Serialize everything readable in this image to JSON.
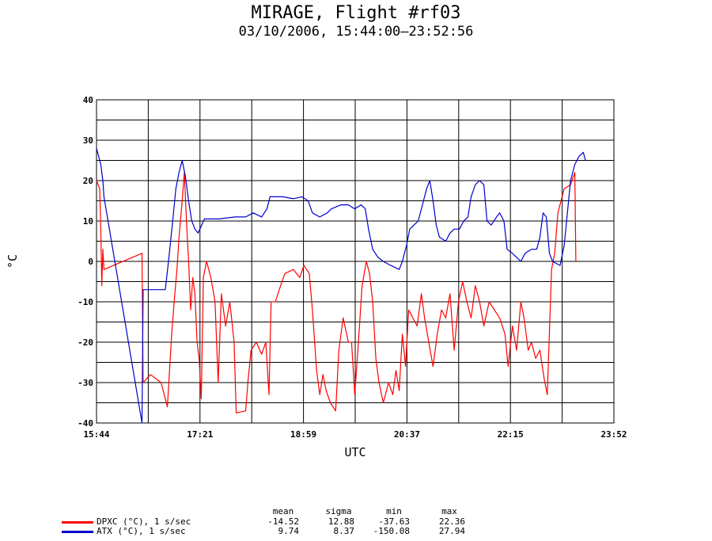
{
  "title": "MIRAGE, Flight #rf03",
  "subtitle": "03/10/2006, 15:44:00–23:52:56",
  "chart_data": {
    "type": "line",
    "xlabel": "UTC",
    "ylabel": "°C",
    "x_ticks": [
      "15:44",
      "17:21",
      "18:59",
      "20:37",
      "22:15",
      "23:52"
    ],
    "xlim": [
      "15:44:00",
      "23:52:56"
    ],
    "ylim": [
      -40,
      40
    ],
    "y_ticks": [
      -40,
      -30,
      -20,
      -10,
      0,
      10,
      20,
      30,
      40
    ],
    "grid": true,
    "series": [
      {
        "name": "DPXC (°C), 1 s/sec",
        "color": "#ff0000",
        "points": [
          [
            "15:44",
            20
          ],
          [
            "15:47",
            18
          ],
          [
            "15:48",
            8
          ],
          [
            "15:49",
            -6
          ],
          [
            "15:50",
            3
          ],
          [
            "15:51",
            -2
          ],
          [
            "16:27",
            2
          ],
          [
            "16:28",
            -30
          ],
          [
            "16:35",
            -28
          ],
          [
            "16:45",
            -30
          ],
          [
            "16:51",
            -36
          ],
          [
            "16:55",
            -18
          ],
          [
            "16:58",
            -8
          ],
          [
            "17:00",
            -2
          ],
          [
            "17:02",
            6
          ],
          [
            "17:05",
            15
          ],
          [
            "17:07",
            22
          ],
          [
            "17:09",
            10
          ],
          [
            "17:11",
            0
          ],
          [
            "17:13",
            -12
          ],
          [
            "17:15",
            -4
          ],
          [
            "17:17",
            -8
          ],
          [
            "17:19",
            -20
          ],
          [
            "17:21",
            -24
          ],
          [
            "17:23",
            -34
          ],
          [
            "17:25",
            -4
          ],
          [
            "17:28",
            0
          ],
          [
            "17:32",
            -4
          ],
          [
            "17:36",
            -10
          ],
          [
            "17:39",
            -30
          ],
          [
            "17:42",
            -8
          ],
          [
            "17:46",
            -16
          ],
          [
            "17:50",
            -10
          ],
          [
            "17:54",
            -20
          ],
          [
            "17:56",
            -37.5
          ],
          [
            "18:05",
            -37
          ],
          [
            "18:07",
            -30
          ],
          [
            "18:10",
            -22
          ],
          [
            "18:15",
            -20
          ],
          [
            "18:20",
            -23
          ],
          [
            "18:24",
            -20
          ],
          [
            "18:27",
            -33
          ],
          [
            "18:29",
            -10
          ],
          [
            "18:33",
            -10
          ],
          [
            "18:38",
            -6
          ],
          [
            "18:42",
            -3
          ],
          [
            "18:50",
            -2
          ],
          [
            "18:56",
            -4
          ],
          [
            "19:00",
            -1
          ],
          [
            "19:05",
            -3
          ],
          [
            "19:08",
            -12
          ],
          [
            "19:12",
            -27
          ],
          [
            "19:15",
            -33
          ],
          [
            "19:18",
            -28
          ],
          [
            "19:21",
            -32
          ],
          [
            "19:25",
            -35
          ],
          [
            "19:30",
            -37
          ],
          [
            "19:33",
            -22
          ],
          [
            "19:37",
            -14
          ],
          [
            "19:42",
            -20
          ],
          [
            "19:45",
            -20
          ],
          [
            "19:48",
            -33
          ],
          [
            "19:51",
            -22
          ],
          [
            "19:55",
            -6
          ],
          [
            "19:59",
            0
          ],
          [
            "20:02",
            -3
          ],
          [
            "20:05",
            -10
          ],
          [
            "20:08",
            -24
          ],
          [
            "20:11",
            -30
          ],
          [
            "20:15",
            -35
          ],
          [
            "20:20",
            -30
          ],
          [
            "20:24",
            -33
          ],
          [
            "20:27",
            -27
          ],
          [
            "20:30",
            -32
          ],
          [
            "20:33",
            -18
          ],
          [
            "20:36",
            -26
          ],
          [
            "20:39",
            -12
          ],
          [
            "20:43",
            -14
          ],
          [
            "20:47",
            -16
          ],
          [
            "20:51",
            -8
          ],
          [
            "20:54",
            -14
          ],
          [
            "20:58",
            -20
          ],
          [
            "21:02",
            -26
          ],
          [
            "21:06",
            -18
          ],
          [
            "21:10",
            -12
          ],
          [
            "21:14",
            -14
          ],
          [
            "21:18",
            -8
          ],
          [
            "21:22",
            -22
          ],
          [
            "21:26",
            -10
          ],
          [
            "21:30",
            -5
          ],
          [
            "21:34",
            -10
          ],
          [
            "21:38",
            -14
          ],
          [
            "21:42",
            -6
          ],
          [
            "21:46",
            -10
          ],
          [
            "21:50",
            -16
          ],
          [
            "21:55",
            -10
          ],
          [
            "22:00",
            -12
          ],
          [
            "22:05",
            -14
          ],
          [
            "22:10",
            -18
          ],
          [
            "22:13",
            -26
          ],
          [
            "22:17",
            -16
          ],
          [
            "22:21",
            -22
          ],
          [
            "22:25",
            -10
          ],
          [
            "22:28",
            -14
          ],
          [
            "22:32",
            -22
          ],
          [
            "22:35",
            -20
          ],
          [
            "22:39",
            -24
          ],
          [
            "22:43",
            -22
          ],
          [
            "22:47",
            -29
          ],
          [
            "22:50",
            -33
          ],
          [
            "22:54",
            -2
          ],
          [
            "22:57",
            2
          ],
          [
            "23:00",
            12
          ],
          [
            "23:06",
            18
          ],
          [
            "23:12",
            19
          ],
          [
            "23:16",
            22
          ],
          [
            "23:17",
            0
          ]
        ]
      },
      {
        "name": "ATX (°C), 1 s/sec",
        "color": "#0000cc",
        "points": [
          [
            "15:44",
            28
          ],
          [
            "15:46",
            26
          ],
          [
            "15:48",
            24
          ],
          [
            "15:50",
            20
          ],
          [
            "15:51",
            16
          ],
          [
            "16:27",
            -42
          ],
          [
            "16:28",
            -7
          ],
          [
            "16:40",
            -7
          ],
          [
            "16:49",
            -7
          ],
          [
            "16:52",
            0
          ],
          [
            "16:56",
            10
          ],
          [
            "16:59",
            18
          ],
          [
            "17:02",
            22
          ],
          [
            "17:05",
            25
          ],
          [
            "17:08",
            21
          ],
          [
            "17:11",
            15
          ],
          [
            "17:14",
            10
          ],
          [
            "17:17",
            8
          ],
          [
            "17:20",
            7
          ],
          [
            "17:26",
            10.5
          ],
          [
            "17:40",
            10.5
          ],
          [
            "17:55",
            11
          ],
          [
            "18:05",
            11
          ],
          [
            "18:12",
            12
          ],
          [
            "18:20",
            11
          ],
          [
            "18:25",
            13
          ],
          [
            "18:28",
            16
          ],
          [
            "18:40",
            16
          ],
          [
            "18:50",
            15.5
          ],
          [
            "18:58",
            16
          ],
          [
            "19:04",
            15
          ],
          [
            "19:08",
            12
          ],
          [
            "19:15",
            11
          ],
          [
            "19:22",
            12
          ],
          [
            "19:26",
            13
          ],
          [
            "19:35",
            14
          ],
          [
            "19:42",
            14
          ],
          [
            "19:48",
            13
          ],
          [
            "19:54",
            14
          ],
          [
            "19:58",
            13
          ],
          [
            "20:01",
            8
          ],
          [
            "20:05",
            3
          ],
          [
            "20:10",
            1
          ],
          [
            "20:15",
            0
          ],
          [
            "20:22",
            -1
          ],
          [
            "20:30",
            -2
          ],
          [
            "20:33",
            0
          ],
          [
            "20:37",
            4
          ],
          [
            "20:40",
            8
          ],
          [
            "20:44",
            9
          ],
          [
            "20:48",
            10
          ],
          [
            "20:52",
            14
          ],
          [
            "20:56",
            18
          ],
          [
            "20:59",
            20
          ],
          [
            "21:02",
            15
          ],
          [
            "21:05",
            9
          ],
          [
            "21:08",
            6
          ],
          [
            "21:14",
            5
          ],
          [
            "21:18",
            7
          ],
          [
            "21:22",
            8
          ],
          [
            "21:27",
            8
          ],
          [
            "21:31",
            10
          ],
          [
            "21:35",
            11
          ],
          [
            "21:38",
            16
          ],
          [
            "21:42",
            19
          ],
          [
            "21:46",
            20
          ],
          [
            "21:50",
            19
          ],
          [
            "21:53",
            10
          ],
          [
            "21:57",
            9
          ],
          [
            "22:02",
            11
          ],
          [
            "22:05",
            12
          ],
          [
            "22:09",
            10
          ],
          [
            "22:12",
            3
          ],
          [
            "22:17",
            2
          ],
          [
            "22:21",
            1
          ],
          [
            "22:25",
            0
          ],
          [
            "22:29",
            2
          ],
          [
            "22:35",
            3
          ],
          [
            "22:40",
            3
          ],
          [
            "22:43",
            6
          ],
          [
            "22:46",
            12
          ],
          [
            "22:49",
            11
          ],
          [
            "22:52",
            2
          ],
          [
            "22:55",
            0
          ],
          [
            "23:02",
            -1
          ],
          [
            "23:06",
            4
          ],
          [
            "23:09",
            12
          ],
          [
            "23:12",
            20
          ],
          [
            "23:16",
            24
          ],
          [
            "23:20",
            26
          ],
          [
            "23:24",
            27
          ],
          [
            "23:26",
            25
          ]
        ]
      }
    ]
  },
  "legend": {
    "headers": [
      "mean",
      "sigma",
      "min",
      "max"
    ],
    "rows": [
      {
        "label": "DPXC (°C), 1 s/sec",
        "color": "#ff0000",
        "mean": "-14.52",
        "sigma": "12.88",
        "min": "-37.63",
        "max": "22.36"
      },
      {
        "label": "ATX (°C), 1 s/sec",
        "color": "#0000cc",
        "mean": "9.74",
        "sigma": "8.37",
        "min": "-150.08",
        "max": "27.94"
      }
    ]
  }
}
